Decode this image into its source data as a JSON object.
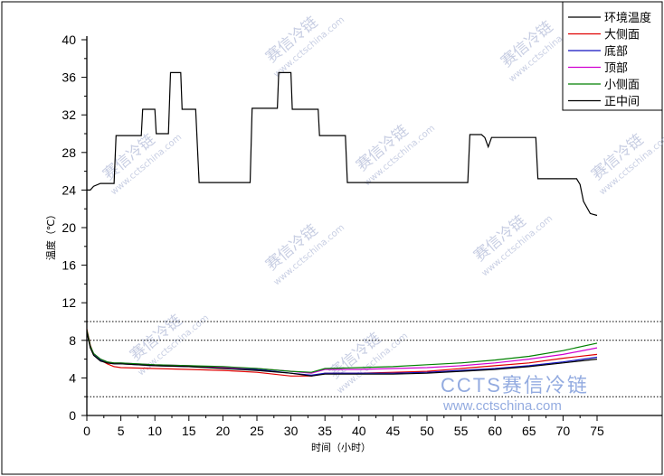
{
  "chart_data": {
    "type": "line",
    "xlabel": "时间（小时）",
    "ylabel": "温度（℃）",
    "xlim": [
      0,
      75
    ],
    "ylim": [
      0,
      40
    ],
    "xticks": [
      "0",
      "5",
      "10",
      "15",
      "20",
      "25",
      "30",
      "35",
      "40",
      "45",
      "50",
      "55",
      "60",
      "65",
      "70",
      "75"
    ],
    "yticks": [
      "0",
      "4",
      "8",
      "12",
      "16",
      "20",
      "24",
      "28",
      "32",
      "36",
      "40"
    ],
    "legend_position": "top-right",
    "reference_lines": [
      10,
      8,
      2,
      0
    ],
    "series": [
      {
        "name": "环境温度",
        "color": "#000000",
        "points": [
          [
            0,
            24
          ],
          [
            0.5,
            24
          ],
          [
            1,
            24.4
          ],
          [
            2,
            24.7
          ],
          [
            4,
            24.7
          ],
          [
            4.3,
            29.8
          ],
          [
            6,
            29.8
          ],
          [
            8,
            29.8
          ],
          [
            8.2,
            32.6
          ],
          [
            10,
            32.6
          ],
          [
            10.2,
            30
          ],
          [
            12,
            30
          ],
          [
            12.3,
            36.5
          ],
          [
            13.8,
            36.5
          ],
          [
            14,
            32.6
          ],
          [
            16,
            32.6
          ],
          [
            16.5,
            24.8
          ],
          [
            20,
            24.8
          ],
          [
            24,
            24.8
          ],
          [
            24.3,
            32.7
          ],
          [
            28,
            32.7
          ],
          [
            28.2,
            36.5
          ],
          [
            30,
            36.5
          ],
          [
            30.2,
            32.6
          ],
          [
            34,
            32.6
          ],
          [
            34.2,
            29.8
          ],
          [
            38,
            29.8
          ],
          [
            38.3,
            24.8
          ],
          [
            45,
            24.8
          ],
          [
            56,
            24.8
          ],
          [
            56.3,
            29.9
          ],
          [
            58,
            29.9
          ],
          [
            58.5,
            29.6
          ],
          [
            59,
            28.6
          ],
          [
            59.5,
            29.6
          ],
          [
            62,
            29.6
          ],
          [
            66,
            29.6
          ],
          [
            66.3,
            25.2
          ],
          [
            70,
            25.2
          ],
          [
            72,
            25.2
          ],
          [
            72.5,
            24.6
          ],
          [
            73,
            22.8
          ],
          [
            74,
            21.5
          ],
          [
            75,
            21.3
          ]
        ]
      },
      {
        "name": "大侧面",
        "color": "#e00000",
        "points": [
          [
            0,
            9.2
          ],
          [
            0.5,
            7.5
          ],
          [
            1,
            6.5
          ],
          [
            2,
            5.9
          ],
          [
            3,
            5.5
          ],
          [
            4,
            5.2
          ],
          [
            5,
            5.1
          ],
          [
            10,
            5.0
          ],
          [
            15,
            4.9
          ],
          [
            20,
            4.8
          ],
          [
            25,
            4.6
          ],
          [
            30,
            4.2
          ],
          [
            33,
            4.2
          ],
          [
            35,
            4.5
          ],
          [
            40,
            4.5
          ],
          [
            45,
            4.6
          ],
          [
            50,
            4.7
          ],
          [
            55,
            5.0
          ],
          [
            60,
            5.3
          ],
          [
            65,
            5.6
          ],
          [
            70,
            6.1
          ],
          [
            75,
            6.5
          ]
        ]
      },
      {
        "name": "底部",
        "color": "#1010c0",
        "points": [
          [
            0,
            9.0
          ],
          [
            0.5,
            7.3
          ],
          [
            1,
            6.5
          ],
          [
            2,
            5.9
          ],
          [
            3,
            5.6
          ],
          [
            4,
            5.5
          ],
          [
            5,
            5.5
          ],
          [
            10,
            5.3
          ],
          [
            15,
            5.2
          ],
          [
            20,
            5.1
          ],
          [
            25,
            4.9
          ],
          [
            30,
            4.5
          ],
          [
            33,
            4.3
          ],
          [
            35,
            4.5
          ],
          [
            40,
            4.5
          ],
          [
            45,
            4.5
          ],
          [
            50,
            4.6
          ],
          [
            55,
            4.8
          ],
          [
            60,
            5.0
          ],
          [
            65,
            5.3
          ],
          [
            70,
            5.7
          ],
          [
            75,
            6.2
          ]
        ]
      },
      {
        "name": "顶部",
        "color": "#d000d0",
        "points": [
          [
            0,
            9.0
          ],
          [
            0.5,
            7.4
          ],
          [
            1,
            6.6
          ],
          [
            2,
            6.0
          ],
          [
            3,
            5.7
          ],
          [
            4,
            5.6
          ],
          [
            5,
            5.6
          ],
          [
            10,
            5.4
          ],
          [
            15,
            5.3
          ],
          [
            20,
            5.1
          ],
          [
            25,
            5.0
          ],
          [
            30,
            4.7
          ],
          [
            33,
            4.5
          ],
          [
            35,
            4.9
          ],
          [
            40,
            4.9
          ],
          [
            45,
            5.0
          ],
          [
            50,
            5.1
          ],
          [
            55,
            5.3
          ],
          [
            60,
            5.6
          ],
          [
            65,
            6.0
          ],
          [
            70,
            6.5
          ],
          [
            75,
            7.2
          ]
        ]
      },
      {
        "name": "小侧面",
        "color": "#008000",
        "points": [
          [
            0,
            9.1
          ],
          [
            0.5,
            7.4
          ],
          [
            1,
            6.6
          ],
          [
            2,
            6.0
          ],
          [
            3,
            5.7
          ],
          [
            4,
            5.6
          ],
          [
            5,
            5.6
          ],
          [
            10,
            5.4
          ],
          [
            15,
            5.3
          ],
          [
            20,
            5.2
          ],
          [
            25,
            5.0
          ],
          [
            30,
            4.7
          ],
          [
            33,
            4.6
          ],
          [
            35,
            5.0
          ],
          [
            40,
            5.1
          ],
          [
            45,
            5.2
          ],
          [
            50,
            5.4
          ],
          [
            55,
            5.6
          ],
          [
            60,
            5.9
          ],
          [
            65,
            6.3
          ],
          [
            70,
            6.9
          ],
          [
            75,
            7.7
          ]
        ]
      },
      {
        "name": "正中间",
        "color": "#000000",
        "points": [
          [
            0,
            8.9
          ],
          [
            0.5,
            7.2
          ],
          [
            1,
            6.4
          ],
          [
            2,
            5.8
          ],
          [
            3,
            5.6
          ],
          [
            4,
            5.5
          ],
          [
            5,
            5.5
          ],
          [
            10,
            5.3
          ],
          [
            15,
            5.2
          ],
          [
            20,
            5.0
          ],
          [
            25,
            4.8
          ],
          [
            30,
            4.5
          ],
          [
            33,
            4.2
          ],
          [
            35,
            4.4
          ],
          [
            40,
            4.4
          ],
          [
            45,
            4.4
          ],
          [
            50,
            4.5
          ],
          [
            55,
            4.7
          ],
          [
            60,
            4.9
          ],
          [
            65,
            5.2
          ],
          [
            70,
            5.6
          ],
          [
            75,
            6.0
          ]
        ]
      }
    ]
  },
  "watermark": {
    "text": "赛信冷链",
    "url": "www.cctschina.com",
    "brand": "CCTS赛信冷链"
  }
}
